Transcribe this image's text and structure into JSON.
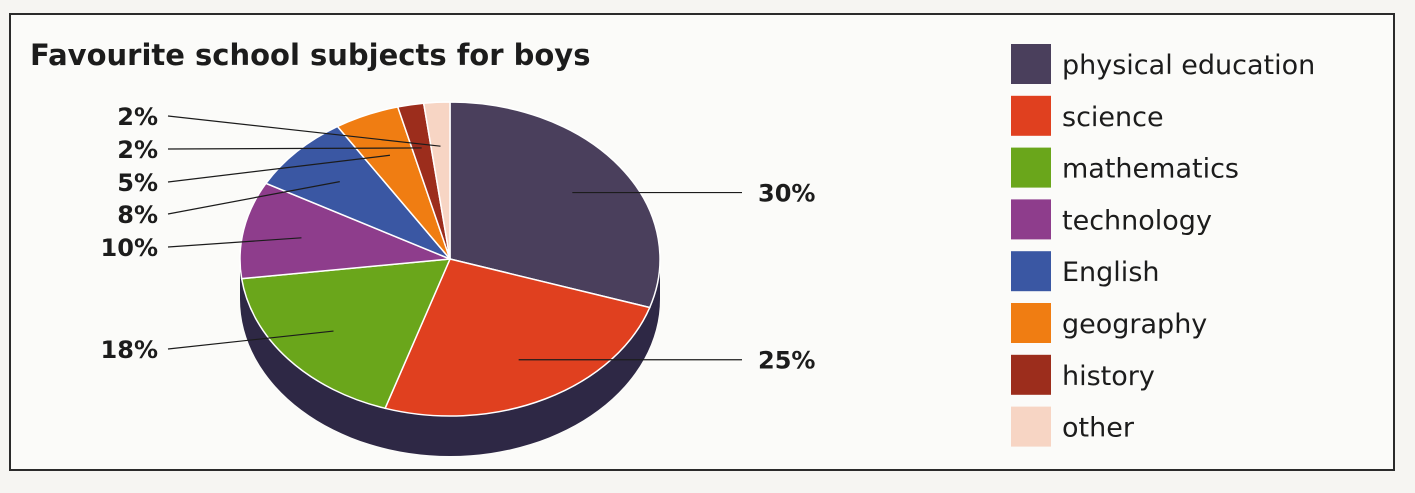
{
  "chart_data": {
    "type": "pie",
    "title": "Favourite school subjects for boys",
    "slices": [
      {
        "label": "physical education",
        "value": 30,
        "value_label": "30%",
        "color": "#4a3f5c"
      },
      {
        "label": "science",
        "value": 25,
        "value_label": "25%",
        "color": "#e0401f"
      },
      {
        "label": "mathematics",
        "value": 18,
        "value_label": "18%",
        "color": "#6aa61b"
      },
      {
        "label": "technology",
        "value": 10,
        "value_label": "10%",
        "color": "#8e3d8c"
      },
      {
        "label": "English",
        "value": 8,
        "value_label": "8%",
        "color": "#3a57a3"
      },
      {
        "label": "geography",
        "value": 5,
        "value_label": "5%",
        "color": "#f07d12"
      },
      {
        "label": "history",
        "value": 2,
        "value_label": "2%",
        "color": "#9c2d1c"
      },
      {
        "label": "other",
        "value": 2,
        "value_label": "2%",
        "color": "#f7d5c4"
      }
    ],
    "legend_position": "right",
    "depth_color": "#2e2845"
  }
}
